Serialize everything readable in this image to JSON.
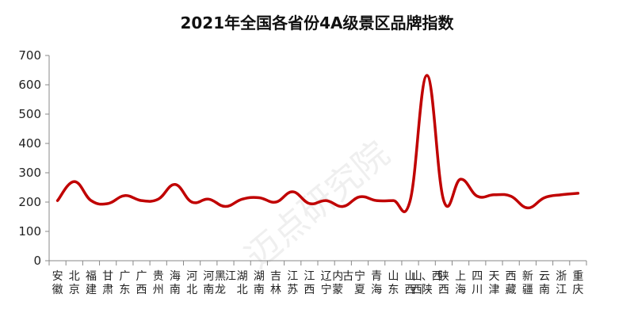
{
  "chart_data": {
    "type": "line",
    "title": "2021年全国各省份4A级景区品牌指数",
    "xlabel": "",
    "ylabel": "",
    "ylim": [
      0,
      700
    ],
    "yticks": [
      0,
      100,
      200,
      300,
      400,
      500,
      600,
      700
    ],
    "grid": false,
    "legend": "none",
    "line_color": "#c00000",
    "categories": [
      "安徽",
      "北京",
      "福建",
      "甘肃",
      "广东",
      "广西",
      "贵州",
      "海南",
      "河北",
      "河南",
      "黑龙江",
      "湖北",
      "湖南",
      "吉林",
      "江苏",
      "江西",
      "辽宁",
      "内蒙古",
      "宁夏",
      "青海",
      "山东",
      "山西",
      "山西、陕西",
      "陕西",
      "上海",
      "四川",
      "天津",
      "西藏",
      "新疆",
      "云南",
      "浙江",
      "重庆"
    ],
    "values": [
      205,
      270,
      205,
      195,
      222,
      205,
      210,
      260,
      200,
      210,
      185,
      210,
      215,
      200,
      235,
      195,
      205,
      185,
      218,
      205,
      205,
      205,
      632,
      205,
      278,
      220,
      225,
      220,
      180,
      215,
      225,
      230
    ]
  },
  "watermark": "迈点研究院"
}
